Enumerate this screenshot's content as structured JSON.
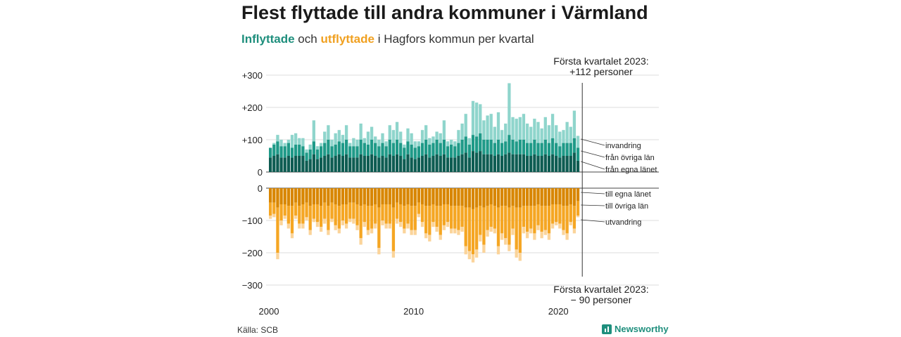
{
  "title": "Flest flyttade till andra kommuner i Värmland",
  "subtitle": {
    "in_word": "Inflyttade",
    "and": "och",
    "out_word": "utflyttade",
    "rest": "i Hagfors kommun per kvartal"
  },
  "annotations": {
    "top_line1": "Första kvartalet 2023:",
    "top_line2": "+112 personer",
    "bottom_line1": "Första kvartalet 2023:",
    "bottom_line2": "− 90 personer"
  },
  "source": "Källa: SCB",
  "brand": "Newsworthy",
  "chart_data": {
    "type": "bar",
    "stacked": true,
    "x_start": "2000 Q1",
    "x_end": "2023 Q1",
    "x_ticks": [
      "2000",
      "2010",
      "2020"
    ],
    "top_panel": {
      "y_ticks": [
        "0",
        "+100",
        "+200",
        "+300"
      ],
      "ylim": [
        0,
        300
      ],
      "legend_labels": [
        "invandring",
        "från övriga län",
        "från egna länet"
      ],
      "colors": [
        "#8fd5cc",
        "#1f9a88",
        "#0e5c52"
      ],
      "totals": [
        60,
        90,
        115,
        100,
        90,
        100,
        115,
        120,
        105,
        105,
        70,
        85,
        160,
        80,
        90,
        125,
        145,
        100,
        120,
        130,
        115,
        145,
        90,
        105,
        100,
        150,
        105,
        125,
        140,
        110,
        100,
        120,
        95,
        145,
        130,
        155,
        125,
        85,
        135,
        120,
        95,
        95,
        130,
        145,
        105,
        110,
        125,
        120,
        160,
        95,
        100,
        95,
        130,
        150,
        180,
        105,
        220,
        215,
        210,
        160,
        175,
        180,
        140,
        185,
        130,
        150,
        275,
        170,
        165,
        170,
        180,
        150,
        140,
        165,
        155,
        135,
        170,
        145,
        180,
        145,
        125,
        130,
        155,
        140,
        190,
        112
      ],
      "from_ovriga_lan": [
        30,
        35,
        40,
        35,
        35,
        40,
        30,
        35,
        35,
        30,
        25,
        30,
        40,
        30,
        35,
        40,
        45,
        35,
        35,
        40,
        40,
        45,
        35,
        35,
        35,
        45,
        40,
        35,
        45,
        40,
        35,
        40,
        35,
        45,
        40,
        45,
        40,
        35,
        40,
        40,
        35,
        35,
        40,
        45,
        40,
        40,
        45,
        40,
        45,
        35,
        40,
        35,
        40,
        45,
        50,
        40,
        50,
        50,
        55,
        45,
        45,
        45,
        40,
        45,
        40,
        40,
        55,
        45,
        40,
        45,
        45,
        40,
        40,
        45,
        40,
        40,
        45,
        40,
        50,
        40,
        35,
        40,
        40,
        40,
        45,
        40
      ],
      "from_egna_lanet": [
        45,
        50,
        55,
        45,
        45,
        50,
        45,
        50,
        50,
        50,
        35,
        40,
        55,
        40,
        45,
        50,
        55,
        45,
        50,
        55,
        50,
        55,
        45,
        45,
        45,
        55,
        50,
        50,
        55,
        50,
        45,
        50,
        45,
        55,
        50,
        55,
        50,
        40,
        55,
        45,
        40,
        45,
        50,
        55,
        45,
        50,
        55,
        50,
        55,
        45,
        45,
        45,
        50,
        55,
        60,
        45,
        65,
        60,
        65,
        55,
        55,
        55,
        50,
        55,
        50,
        55,
        60,
        55,
        55,
        55,
        55,
        50,
        50,
        55,
        50,
        50,
        55,
        50,
        55,
        50,
        45,
        50,
        50,
        50,
        60,
        35
      ]
    },
    "bottom_panel": {
      "y_ticks": [
        "0",
        "−100",
        "−200",
        "−300"
      ],
      "ylim": [
        -300,
        0
      ],
      "legend_labels": [
        "till egna länet",
        "till övriga län",
        "utvandring"
      ],
      "colors": [
        "#d88600",
        "#f5a623",
        "#fbd49a"
      ],
      "totals": [
        95,
        90,
        220,
        115,
        95,
        125,
        155,
        95,
        125,
        125,
        100,
        145,
        105,
        120,
        135,
        110,
        145,
        105,
        130,
        140,
        115,
        125,
        105,
        110,
        130,
        175,
        120,
        145,
        140,
        125,
        205,
        115,
        125,
        125,
        215,
        110,
        120,
        140,
        125,
        145,
        145,
        90,
        120,
        155,
        165,
        120,
        135,
        160,
        130,
        120,
        140,
        140,
        145,
        135,
        205,
        220,
        230,
        215,
        165,
        200,
        150,
        135,
        140,
        205,
        160,
        175,
        195,
        145,
        215,
        225,
        140,
        155,
        140,
        160,
        130,
        155,
        145,
        160,
        125,
        115,
        125,
        145,
        160,
        115,
        140,
        90
      ],
      "to_egna_lanet": [
        45,
        45,
        60,
        50,
        50,
        55,
        55,
        45,
        55,
        50,
        45,
        55,
        50,
        50,
        55,
        45,
        55,
        45,
        50,
        55,
        50,
        50,
        45,
        45,
        50,
        55,
        50,
        55,
        55,
        50,
        60,
        50,
        50,
        50,
        60,
        45,
        50,
        55,
        50,
        55,
        55,
        45,
        50,
        55,
        55,
        50,
        55,
        55,
        50,
        50,
        55,
        55,
        55,
        55,
        60,
        60,
        65,
        60,
        55,
        60,
        55,
        50,
        55,
        60,
        55,
        55,
        60,
        55,
        60,
        60,
        55,
        55,
        55,
        55,
        50,
        55,
        55,
        55,
        50,
        50,
        50,
        55,
        55,
        50,
        55,
        40
      ],
      "to_ovriga_lan": [
        40,
        35,
        140,
        50,
        35,
        55,
        85,
        40,
        55,
        60,
        45,
        75,
        45,
        55,
        65,
        50,
        75,
        50,
        65,
        70,
        50,
        60,
        50,
        50,
        65,
        100,
        55,
        75,
        70,
        60,
        125,
        50,
        60,
        60,
        135,
        50,
        55,
        70,
        60,
        75,
        75,
        35,
        55,
        85,
        90,
        55,
        65,
        90,
        65,
        55,
        70,
        70,
        75,
        65,
        120,
        135,
        140,
        130,
        90,
        115,
        75,
        70,
        70,
        120,
        85,
        100,
        115,
        70,
        130,
        140,
        65,
        80,
        70,
        85,
        65,
        80,
        75,
        85,
        60,
        55,
        60,
        75,
        85,
        55,
        70,
        45
      ]
    }
  }
}
